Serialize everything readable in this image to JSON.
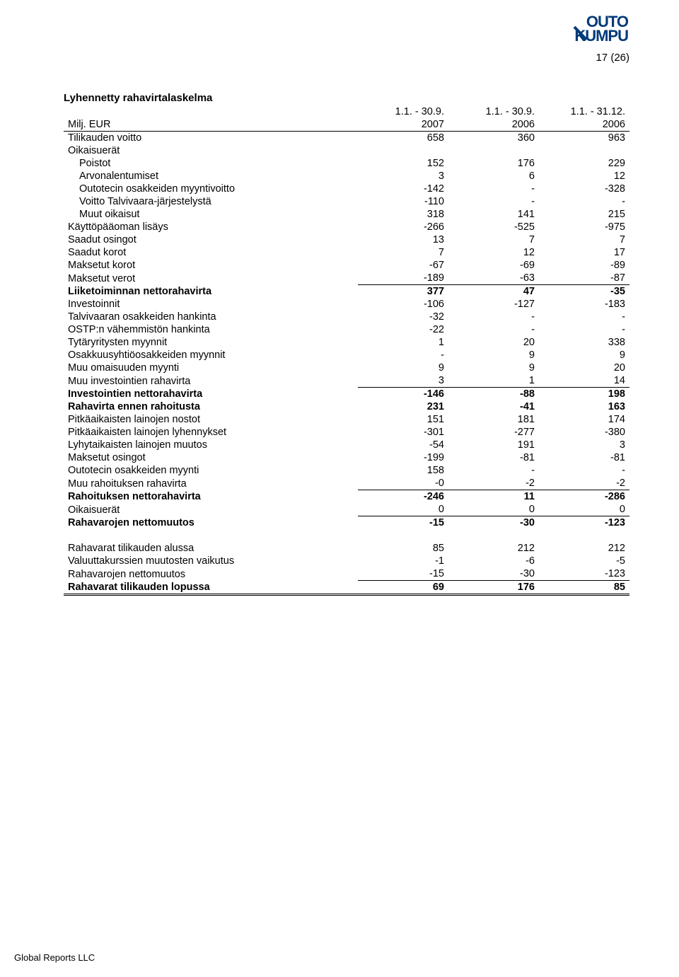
{
  "page_number": "17 (26)",
  "logo_word1": "OUTO",
  "logo_word2": "KUMPU",
  "logo_color": "#003a7a",
  "title": "Lyhennetty rahavirtalaskelma",
  "col_headers_periods": [
    "1.1. - 30.9.",
    "1.1. - 30.9.",
    "1.1. - 31.12."
  ],
  "col_left_label": "Milj. EUR",
  "col_headers_years": [
    "2007",
    "2006",
    "2006"
  ],
  "rows": [
    {
      "label": "Tilikauden voitto",
      "vals": [
        "658",
        "360",
        "963"
      ]
    },
    {
      "label": "Oikaisuerät",
      "vals": [
        "",
        "",
        ""
      ]
    },
    {
      "label": "Poistot",
      "indent": 1,
      "vals": [
        "152",
        "176",
        "229"
      ]
    },
    {
      "label": "Arvonalentumiset",
      "indent": 1,
      "vals": [
        "3",
        "6",
        "12"
      ]
    },
    {
      "label": "Outotecin osakkeiden myyntivoitto",
      "indent": 1,
      "vals": [
        "-142",
        "-",
        "-328"
      ]
    },
    {
      "label": "Voitto Talvivaara-järjestelystä",
      "indent": 1,
      "vals": [
        "-110",
        "-",
        "-"
      ]
    },
    {
      "label": "Muut oikaisut",
      "indent": 1,
      "vals": [
        "318",
        "141",
        "215"
      ]
    },
    {
      "label": "Käyttöpääoman lisäys",
      "vals": [
        "-266",
        "-525",
        "-975"
      ]
    },
    {
      "label": "Saadut osingot",
      "vals": [
        "13",
        "7",
        "7"
      ]
    },
    {
      "label": "Saadut korot",
      "vals": [
        "7",
        "12",
        "17"
      ]
    },
    {
      "label": "Maksetut korot",
      "vals": [
        "-67",
        "-69",
        "-89"
      ]
    },
    {
      "label": "Maksetut verot",
      "vals": [
        "-189",
        "-63",
        "-87"
      ],
      "underline_after": true
    },
    {
      "label": "Liiketoiminnan nettorahavirta",
      "bold": true,
      "vals": [
        "377",
        "47",
        "-35"
      ]
    },
    {
      "label": "Investoinnit",
      "vals": [
        "-106",
        "-127",
        "-183"
      ]
    },
    {
      "label": "Talvivaaran osakkeiden hankinta",
      "vals": [
        "-32",
        "-",
        "-"
      ]
    },
    {
      "label": "OSTP:n vähemmistön hankinta",
      "vals": [
        "-22",
        "-",
        "-"
      ]
    },
    {
      "label": "Tytäryritysten myynnit",
      "vals": [
        "1",
        "20",
        "338"
      ]
    },
    {
      "label": "Osakkuusyhtiöosakkeiden myynnit",
      "vals": [
        "-",
        "9",
        "9"
      ]
    },
    {
      "label": "Muu omaisuuden myynti",
      "vals": [
        "9",
        "9",
        "20"
      ]
    },
    {
      "label": "Muu investointien rahavirta",
      "vals": [
        "3",
        "1",
        "14"
      ],
      "underline_after": true
    },
    {
      "label": "Investointien nettorahavirta",
      "bold": true,
      "vals": [
        "-146",
        "-88",
        "198"
      ]
    },
    {
      "label": "Rahavirta ennen rahoitusta",
      "bold": true,
      "vals": [
        "231",
        "-41",
        "163"
      ]
    },
    {
      "label": "Pitkäaikaisten lainojen nostot",
      "vals": [
        "151",
        "181",
        "174"
      ]
    },
    {
      "label": "Pitkäaikaisten lainojen lyhennykset",
      "vals": [
        "-301",
        "-277",
        "-380"
      ]
    },
    {
      "label": "Lyhytaikaisten lainojen muutos",
      "vals": [
        "-54",
        "191",
        "3"
      ]
    },
    {
      "label": "Maksetut osingot",
      "vals": [
        "-199",
        "-81",
        "-81"
      ]
    },
    {
      "label": "Outotecin osakkeiden myynti",
      "vals": [
        "158",
        "-",
        "-"
      ]
    },
    {
      "label": "Muu rahoituksen rahavirta",
      "vals": [
        "-0",
        "-2",
        "-2"
      ],
      "underline_after": true
    },
    {
      "label": "Rahoituksen nettorahavirta",
      "bold": true,
      "vals": [
        "-246",
        "11",
        "-286"
      ]
    },
    {
      "label": "Oikaisuerät",
      "vals": [
        "0",
        "0",
        "0"
      ],
      "underline_after": true
    },
    {
      "label": "Rahavarojen nettomuutos",
      "bold": true,
      "vals": [
        "-15",
        "-30",
        "-123"
      ]
    },
    {
      "spacer": true
    },
    {
      "label": "Rahavarat tilikauden alussa",
      "vals": [
        "85",
        "212",
        "212"
      ]
    },
    {
      "label": "Valuuttakurssien muutosten vaikutus",
      "vals": [
        "-1",
        "-6",
        "-5"
      ]
    },
    {
      "label": "Rahavarojen nettomuutos",
      "vals": [
        "-15",
        "-30",
        "-123"
      ],
      "underline_after": true
    },
    {
      "label": "Rahavarat tilikauden lopussa",
      "bold": true,
      "vals": [
        "69",
        "176",
        "85"
      ],
      "double_after": true
    }
  ],
  "footer": "Global Reports LLC"
}
